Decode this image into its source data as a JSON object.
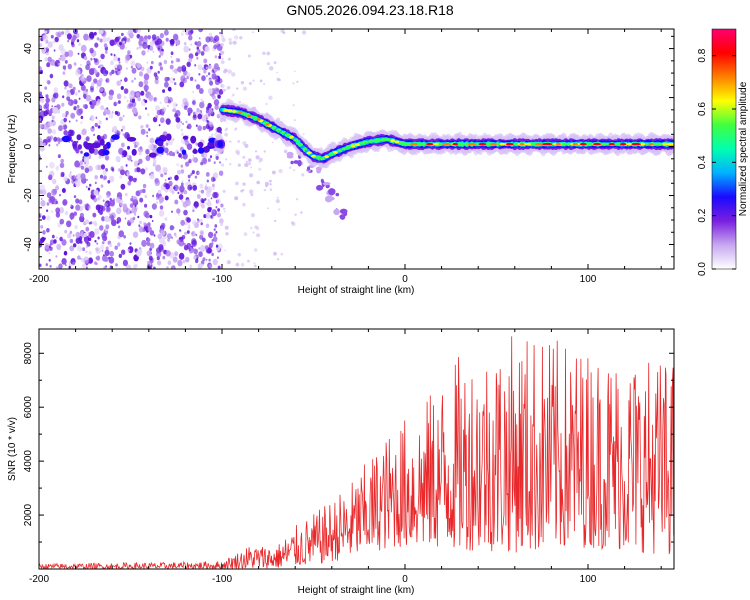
{
  "title": "GN05.2026.094.23.18.R18",
  "chart_data": [
    {
      "type": "heatmap",
      "name": "spectrogram",
      "xlabel": "Height of straight line (km)",
      "ylabel": "Frequency (Hz)",
      "xlim": [
        -200,
        147
      ],
      "ylim": [
        -50,
        48
      ],
      "xticks": [
        -200,
        -100,
        0,
        100
      ],
      "yticks": [
        -40,
        -20,
        0,
        20,
        40
      ],
      "colorbar": {
        "label": "Normalized spectral amplitude",
        "range": [
          0,
          0.9
        ],
        "ticks": [
          "0.0",
          "0.2",
          "0.4",
          "0.6",
          "0.8"
        ],
        "tick_values": [
          0,
          0.2,
          0.4,
          0.6,
          0.8
        ],
        "colors": [
          "#ffffff",
          "#c8a8f0",
          "#7a1fe0",
          "#1a0aff",
          "#00b0ff",
          "#00ffb0",
          "#40ff40",
          "#ffff00",
          "#ff8000",
          "#ff0000",
          "#ff0070"
        ]
      },
      "ridge": [
        {
          "x": -100,
          "y": 15
        },
        {
          "x": -90,
          "y": 14
        },
        {
          "x": -80,
          "y": 11
        },
        {
          "x": -70,
          "y": 7
        },
        {
          "x": -60,
          "y": 3
        },
        {
          "x": -55,
          "y": -1
        },
        {
          "x": -50,
          "y": -4
        },
        {
          "x": -45,
          "y": -5
        },
        {
          "x": -40,
          "y": -3
        },
        {
          "x": -30,
          "y": 0
        },
        {
          "x": -20,
          "y": 2
        },
        {
          "x": -10,
          "y": 3
        },
        {
          "x": 0,
          "y": 1
        },
        {
          "x": 20,
          "y": 1
        },
        {
          "x": 50,
          "y": 1
        },
        {
          "x": 100,
          "y": 1
        },
        {
          "x": 147,
          "y": 1
        }
      ],
      "tail": [
        {
          "x": -60,
          "y": -5
        },
        {
          "x": -50,
          "y": -10
        },
        {
          "x": -45,
          "y": -15
        },
        {
          "x": -40,
          "y": -20
        },
        {
          "x": -35,
          "y": -27
        }
      ],
      "noise_band": {
        "x_start": -200,
        "x_end": -100,
        "center_y": 0
      }
    },
    {
      "type": "line",
      "name": "snr",
      "xlabel": "Height of straight line (km)",
      "ylabel": "SNR (10 * v/v)",
      "xlim": [
        -200,
        147
      ],
      "ylim": [
        0,
        8900
      ],
      "xticks": [
        -200,
        -100,
        0,
        100
      ],
      "yticks": [
        2000,
        4000,
        6000,
        8000
      ],
      "color": "#e8282a",
      "envelope": [
        {
          "x": -200,
          "lo": 10,
          "hi": 200
        },
        {
          "x": -130,
          "lo": 10,
          "hi": 250
        },
        {
          "x": -100,
          "lo": 10,
          "hi": 300
        },
        {
          "x": -85,
          "lo": 20,
          "hi": 900
        },
        {
          "x": -70,
          "lo": 30,
          "hi": 900
        },
        {
          "x": -60,
          "lo": 100,
          "hi": 1600
        },
        {
          "x": -45,
          "lo": 200,
          "hi": 2300
        },
        {
          "x": -30,
          "lo": 400,
          "hi": 3200
        },
        {
          "x": -20,
          "lo": 600,
          "hi": 4100
        },
        {
          "x": -5,
          "lo": 800,
          "hi": 5400
        },
        {
          "x": 10,
          "lo": 800,
          "hi": 6200
        },
        {
          "x": 30,
          "lo": 700,
          "hi": 8000
        },
        {
          "x": 65,
          "lo": 600,
          "hi": 8900
        },
        {
          "x": 100,
          "lo": 800,
          "hi": 8200
        },
        {
          "x": 147,
          "lo": 500,
          "hi": 7800
        }
      ]
    }
  ]
}
